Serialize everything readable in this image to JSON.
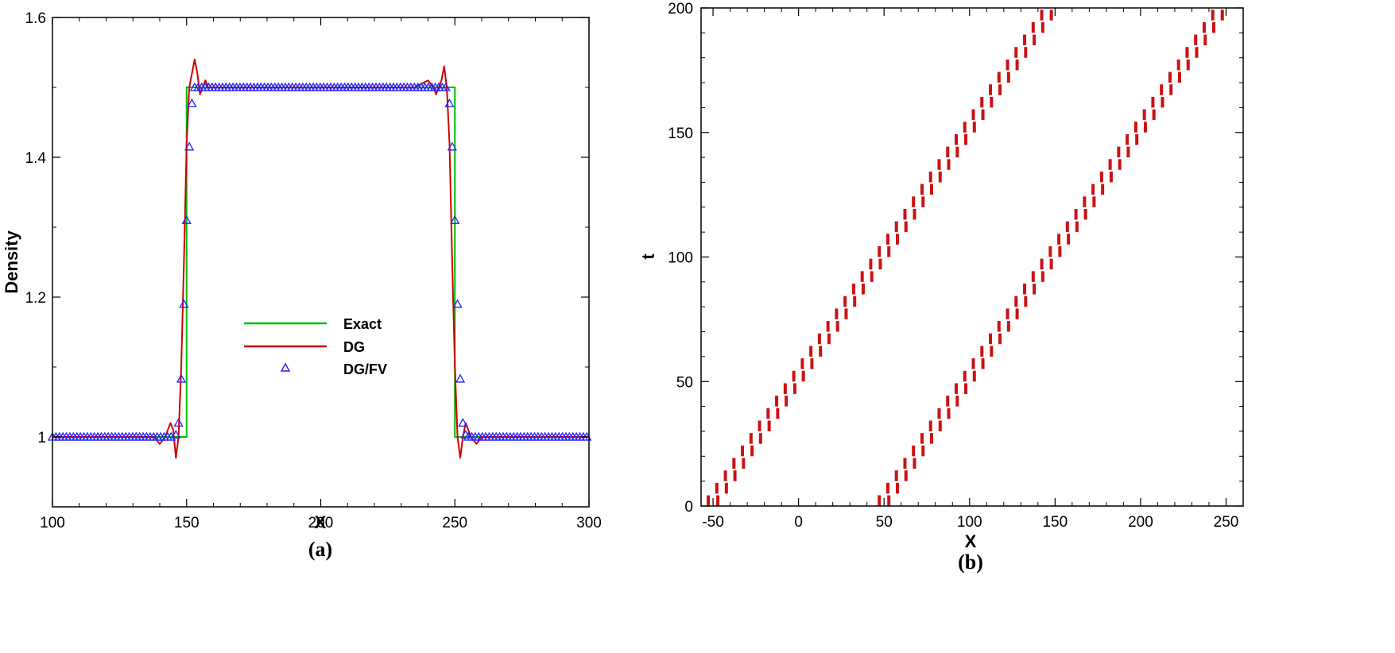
{
  "colors": {
    "exact": "#00bb00",
    "dg": "#d00000",
    "dgfv": "#2222ff",
    "troubled": "#cc1111",
    "axis": "#000000"
  },
  "chart_data": [
    {
      "panel": "(a)",
      "type": "line",
      "xlabel": "X",
      "ylabel": "Density",
      "xlim": [
        100,
        300
      ],
      "ylim": [
        0.9,
        1.6
      ],
      "xticks": [
        "100",
        "150",
        "200",
        "250",
        "300"
      ],
      "yticks": [
        {
          "value": 1.0,
          "label": "1"
        },
        {
          "value": 1.2,
          "label": "1.2"
        },
        {
          "value": 1.4,
          "label": "1.4"
        },
        {
          "value": 1.6,
          "label": "1.6"
        }
      ],
      "legend_position": "center",
      "series": [
        {
          "name": "Exact",
          "style": "line",
          "x": [
            100,
            150,
            150,
            250,
            250,
            300
          ],
          "y": [
            1.0,
            1.0,
            1.5,
            1.5,
            1.0,
            1.0
          ]
        },
        {
          "name": "DG",
          "style": "line",
          "x": [
            100,
            138,
            140,
            142,
            144,
            145,
            146,
            147,
            148,
            149,
            150,
            151,
            152,
            153,
            154,
            155,
            156,
            157,
            158,
            160,
            165,
            200,
            235,
            240,
            242,
            243,
            244,
            245,
            246,
            247,
            248,
            249,
            250,
            251,
            252,
            253,
            254,
            255,
            256,
            258,
            260,
            300
          ],
          "y": [
            1.0,
            1.0,
            0.99,
            1.0,
            1.02,
            1.01,
            0.97,
            1.0,
            1.1,
            1.25,
            1.42,
            1.5,
            1.52,
            1.54,
            1.52,
            1.49,
            1.5,
            1.51,
            1.5,
            1.5,
            1.5,
            1.5,
            1.5,
            1.51,
            1.5,
            1.49,
            1.5,
            1.51,
            1.53,
            1.5,
            1.42,
            1.25,
            1.1,
            1.0,
            0.97,
            1.0,
            1.02,
            1.01,
            1.0,
            0.99,
            1.0,
            1.0
          ]
        },
        {
          "name": "DG/FV",
          "style": "triangle-markers",
          "x": [
            146,
            147,
            148,
            149,
            150,
            151,
            152,
            248,
            249,
            250,
            251,
            252,
            253,
            254
          ],
          "y": [
            1.003,
            1.02,
            1.083,
            1.19,
            1.31,
            1.415,
            1.477,
            1.477,
            1.415,
            1.31,
            1.19,
            1.083,
            1.02,
            1.003
          ]
        }
      ]
    },
    {
      "panel": "(b)",
      "type": "scatter",
      "xlabel": "X",
      "ylabel": "t",
      "xlim": [
        -57,
        260
      ],
      "ylim": [
        0,
        200
      ],
      "xticks": [
        "-50",
        "0",
        "50",
        "100",
        "150",
        "200",
        "250"
      ],
      "yticks": [
        "0",
        "50",
        "100",
        "150",
        "200"
      ],
      "series": [
        {
          "name": "",
          "style": "vertical-dashes",
          "band_start": -50,
          "speed": 1.0
        },
        {
          "name": "",
          "style": "vertical-dashes",
          "band_start": 50,
          "speed": 1.0
        }
      ]
    }
  ],
  "captions": [
    "(a)",
    "(b)"
  ]
}
